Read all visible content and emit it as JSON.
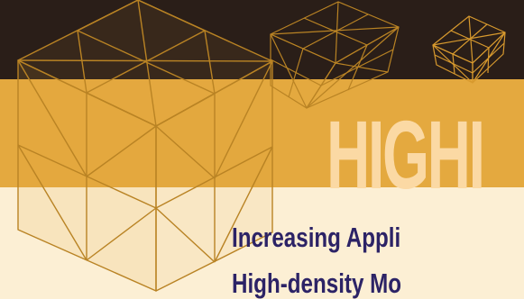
{
  "cover": {
    "big_word": "HIGHI",
    "headline_line1": "Increasing Appli",
    "headline_line2": "High-density Mo"
  },
  "colors": {
    "dark_band": "#2A1E18",
    "orange_band": "#E4A93F",
    "cream_band": "#FCEFD4",
    "cube_line": "#B98324",
    "big_word": "#FBD9A4",
    "headline": "#2C2366"
  },
  "decorations": [
    "large-wireframe-cube",
    "small-wireframe-cube",
    "tiny-wireframe-cube"
  ]
}
